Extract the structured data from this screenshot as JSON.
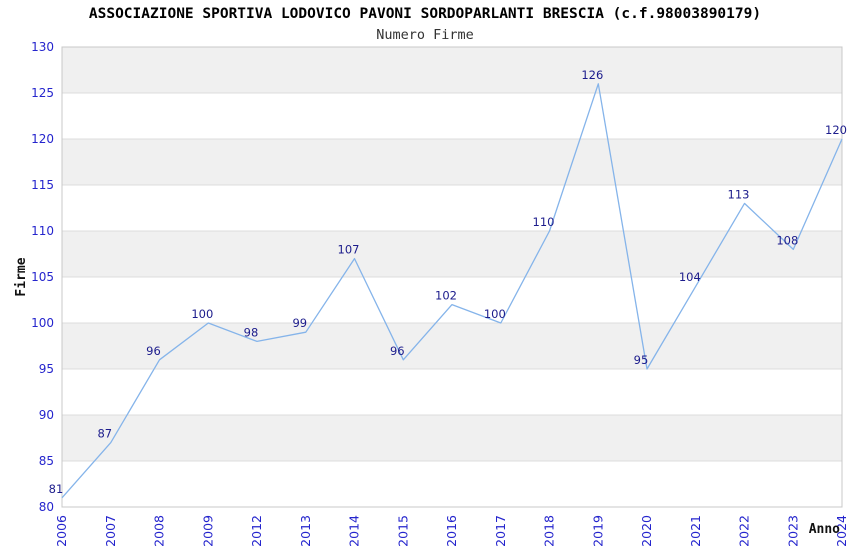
{
  "page": {
    "title": "ASSOCIAZIONE SPORTIVA LODOVICO PAVONI SORDOPARLANTI BRESCIA (c.f.98003890179)",
    "subtitle": "Numero Firme"
  },
  "chart_data": {
    "type": "line",
    "title": "ASSOCIAZIONE SPORTIVA LODOVICO PAVONI SORDOPARLANTI BRESCIA (c.f.98003890179)",
    "subtitle": "Numero Firme",
    "xlabel": "Anno",
    "ylabel": "Firme",
    "categories": [
      "2006",
      "2007",
      "2008",
      "2009",
      "2012",
      "2013",
      "2014",
      "2015",
      "2016",
      "2017",
      "2018",
      "2019",
      "2020",
      "2021",
      "2022",
      "2023",
      "2024"
    ],
    "values": [
      81,
      87,
      96,
      100,
      98,
      99,
      107,
      96,
      102,
      100,
      110,
      126,
      95,
      104,
      113,
      108,
      120
    ],
    "ylim": [
      80,
      130
    ],
    "ytick_step": 5,
    "grid": true,
    "alternating_bands": true,
    "legend": "none",
    "colors": {
      "line": "#85b4ea",
      "value_label": "#1c1c8c",
      "tick_label": "#2525cd",
      "band_fill": "#f0f0f0",
      "grid_line": "#dcdcdc",
      "plot_border": "#c8c8c8",
      "axis_caption": "#111111"
    }
  }
}
